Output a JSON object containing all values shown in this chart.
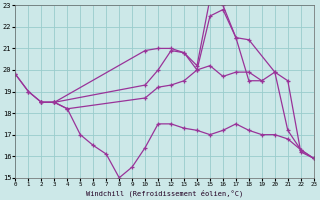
{
  "xlabel": "Windchill (Refroidissement éolien,°C)",
  "bg_color": "#cce8e8",
  "grid_color": "#99cccc",
  "line_color": "#993399",
  "xlim": [
    0,
    23
  ],
  "ylim": [
    15,
    23
  ],
  "yticks": [
    15,
    16,
    17,
    18,
    19,
    20,
    21,
    22,
    23
  ],
  "xticks": [
    0,
    1,
    2,
    3,
    4,
    5,
    6,
    7,
    8,
    9,
    10,
    11,
    12,
    13,
    14,
    15,
    16,
    17,
    18,
    19,
    20,
    21,
    22,
    23
  ],
  "lines": [
    {
      "x": [
        2,
        3,
        10,
        11,
        12,
        13,
        14,
        15,
        16,
        17,
        18,
        20,
        21,
        22,
        23
      ],
      "y": [
        18.5,
        18.5,
        20.9,
        21.0,
        21.0,
        20.8,
        20.2,
        23.3,
        23.0,
        21.5,
        21.4,
        19.9,
        17.2,
        16.3,
        15.9
      ]
    },
    {
      "x": [
        2,
        3,
        10,
        11,
        12,
        13,
        14,
        15,
        16,
        17,
        18,
        19
      ],
      "y": [
        18.5,
        18.5,
        19.3,
        20.0,
        20.9,
        20.8,
        20.0,
        22.5,
        22.8,
        21.5,
        19.5,
        19.5
      ]
    },
    {
      "x": [
        0,
        1,
        2,
        3,
        4,
        10,
        11,
        12,
        13,
        14,
        15,
        16,
        17,
        18,
        19,
        20,
        21,
        22,
        23
      ],
      "y": [
        19.8,
        19.0,
        18.5,
        18.5,
        18.2,
        18.7,
        19.2,
        19.3,
        19.5,
        20.0,
        20.2,
        19.7,
        19.9,
        19.9,
        19.5,
        19.9,
        19.5,
        16.2,
        15.9
      ]
    },
    {
      "x": [
        0,
        1,
        2,
        3,
        4,
        5,
        6,
        7,
        8,
        9,
        10,
        11,
        12,
        13,
        14,
        15,
        16,
        17,
        18,
        19,
        20,
        21,
        22,
        23
      ],
      "y": [
        19.8,
        19.0,
        18.5,
        18.5,
        18.2,
        17.0,
        16.5,
        16.1,
        15.0,
        15.5,
        16.4,
        17.5,
        17.5,
        17.3,
        17.2,
        17.0,
        17.2,
        17.5,
        17.2,
        17.0,
        17.0,
        16.8,
        16.3,
        15.9
      ]
    }
  ]
}
